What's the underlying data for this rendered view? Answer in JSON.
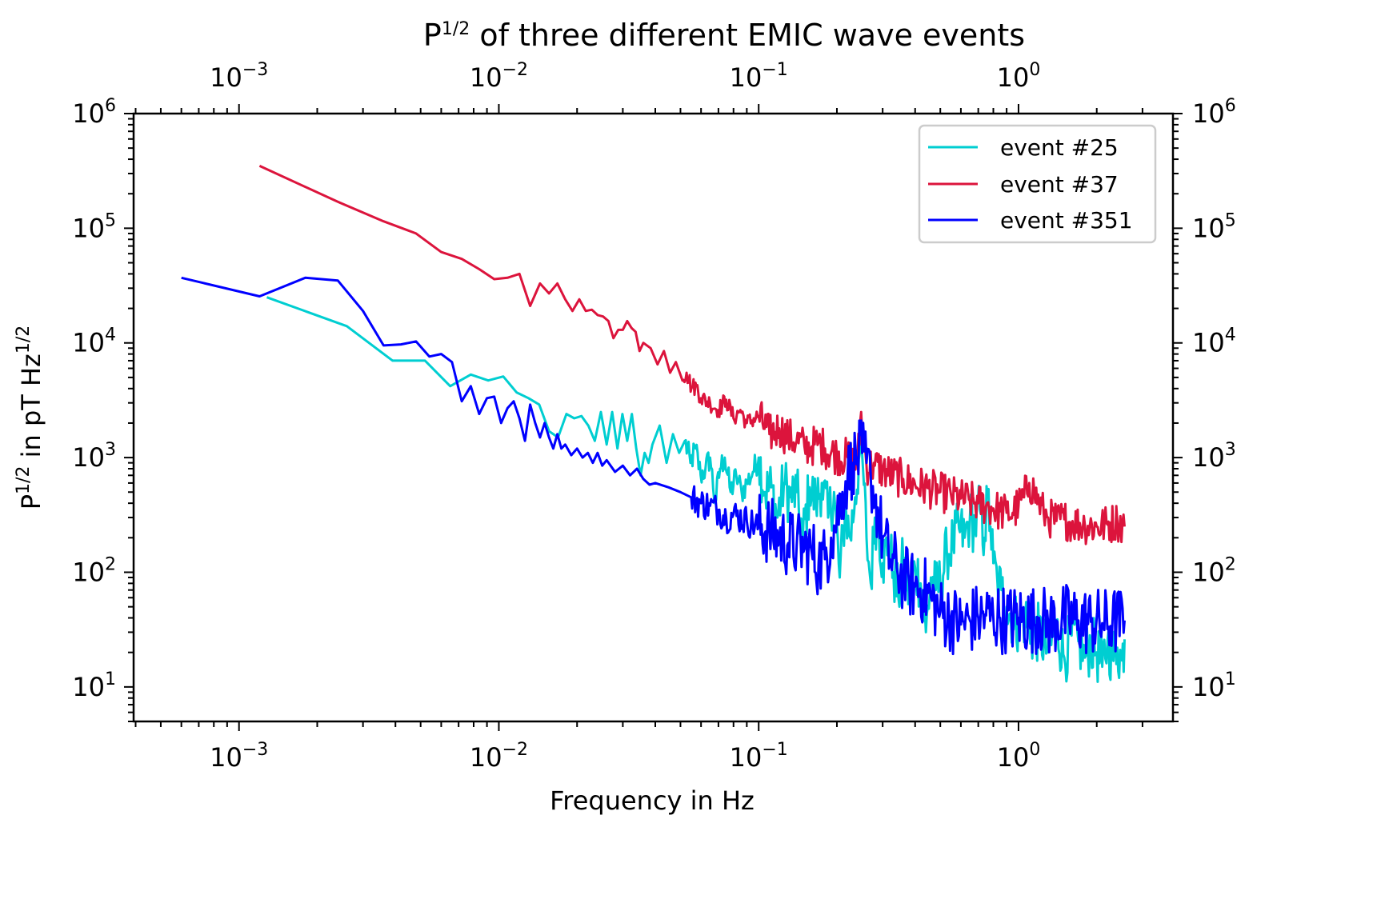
{
  "chart_data": {
    "type": "line",
    "title": "P^{1/2} of three different EMIC wave events",
    "title_parts": {
      "base": "P",
      "sup": "1/2",
      "rest": " of three different EMIC wave events"
    },
    "xlabel": "Frequency in Hz",
    "ylabel_parts": {
      "p1": "P",
      "s1": "1/2",
      "p2": " in pT Hz",
      "s2": "1/2"
    },
    "xscale": "log",
    "yscale": "log",
    "xlim": [
      0.000393,
      3.93
    ],
    "ylim": [
      5.0,
      1000000
    ],
    "grid": false,
    "legend_position": "top-right",
    "x_ticks": [
      {
        "value": 0.001,
        "base": "10",
        "exp": "−3"
      },
      {
        "value": 0.01,
        "base": "10",
        "exp": "−2"
      },
      {
        "value": 0.1,
        "base": "10",
        "exp": "−1"
      },
      {
        "value": 1,
        "base": "10",
        "exp": "0"
      }
    ],
    "y_ticks": [
      {
        "value": 10,
        "base": "10",
        "exp": "1"
      },
      {
        "value": 100,
        "base": "10",
        "exp": "2"
      },
      {
        "value": 1000,
        "base": "10",
        "exp": "3"
      },
      {
        "value": 10000,
        "base": "10",
        "exp": "4"
      },
      {
        "value": 100000,
        "base": "10",
        "exp": "5"
      },
      {
        "value": 1000000,
        "base": "10",
        "exp": "6"
      }
    ],
    "series": [
      {
        "name": "event #25",
        "color": "#00CED1",
        "x": [
          0.00128,
          0.0026,
          0.0039,
          0.0052,
          0.0065,
          0.0078,
          0.0091,
          0.0104,
          0.0117,
          0.013,
          0.0143,
          0.0156,
          0.0169,
          0.0182,
          0.0195,
          0.0208,
          0.0221,
          0.0234,
          0.0247,
          0.026,
          0.0273,
          0.0286,
          0.0299,
          0.0312,
          0.0325,
          0.0338,
          0.0351,
          0.0364,
          0.0377,
          0.039,
          0.0416,
          0.0442,
          0.0468,
          0.0494,
          0.052,
          0.0546,
          0.0572,
          0.0598,
          0.0624,
          0.065,
          0.068,
          0.071,
          0.074,
          0.078,
          0.082,
          0.086,
          0.09,
          0.095,
          0.1,
          0.106,
          0.112,
          0.118,
          0.125,
          0.132,
          0.14,
          0.148,
          0.157,
          0.166,
          0.175,
          0.185,
          0.195,
          0.205,
          0.215,
          0.225,
          0.235,
          0.245,
          0.252,
          0.26,
          0.27,
          0.28,
          0.29,
          0.3,
          0.315,
          0.33,
          0.345,
          0.36,
          0.38,
          0.4,
          0.42,
          0.44,
          0.46,
          0.48,
          0.5,
          0.53,
          0.56,
          0.59,
          0.62,
          0.65,
          0.68,
          0.71,
          0.74,
          0.76,
          0.78,
          0.8,
          0.83,
          0.86,
          0.9,
          0.95,
          1.0,
          1.06,
          1.12,
          1.2,
          1.3,
          1.4,
          1.5,
          1.6,
          1.7,
          1.8,
          1.9,
          2.0,
          2.1,
          2.2,
          2.3,
          2.4,
          2.5,
          2.56
        ],
        "y": [
          25000,
          14000,
          7000,
          7000,
          4200,
          5300,
          4700,
          5100,
          3700,
          3300,
          2900,
          1700,
          1500,
          2400,
          2200,
          2300,
          1900,
          1400,
          2500,
          1300,
          2500,
          1200,
          2400,
          1400,
          2400,
          1200,
          700,
          1100,
          900,
          1300,
          1900,
          900,
          1600,
          1100,
          1400,
          900,
          1200,
          700,
          800,
          1000,
          400,
          800,
          1000,
          500,
          700,
          500,
          600,
          750,
          1000,
          500,
          550,
          300,
          600,
          450,
          500,
          200,
          550,
          400,
          600,
          300,
          500,
          90,
          350,
          200,
          450,
          1100,
          800,
          200,
          80,
          300,
          250,
          120,
          180,
          100,
          60,
          130,
          60,
          110,
          80,
          30,
          90,
          70,
          80,
          150,
          180,
          240,
          200,
          300,
          250,
          350,
          200,
          450,
          250,
          120,
          80,
          70,
          50,
          40,
          35,
          40,
          28,
          30,
          20,
          32,
          18,
          28,
          25,
          18,
          24,
          20,
          15,
          25,
          18,
          22,
          17,
          26
        ],
        "noise": 0.12
      },
      {
        "name": "event #37",
        "color": "#DC143C",
        "x": [
          0.0012,
          0.0024,
          0.0036,
          0.0048,
          0.006,
          0.0072,
          0.0084,
          0.0096,
          0.0108,
          0.012,
          0.0132,
          0.0144,
          0.0156,
          0.0168,
          0.018,
          0.0192,
          0.0204,
          0.0216,
          0.0228,
          0.024,
          0.0252,
          0.0264,
          0.0276,
          0.0288,
          0.03,
          0.0312,
          0.0324,
          0.0336,
          0.0348,
          0.036,
          0.0384,
          0.0408,
          0.0432,
          0.0456,
          0.048,
          0.0504,
          0.0528,
          0.0552,
          0.0576,
          0.06,
          0.065,
          0.07,
          0.075,
          0.08,
          0.085,
          0.09,
          0.1,
          0.11,
          0.12,
          0.13,
          0.14,
          0.15,
          0.16,
          0.17,
          0.18,
          0.2,
          0.22,
          0.24,
          0.248,
          0.26,
          0.28,
          0.3,
          0.33,
          0.36,
          0.4,
          0.45,
          0.5,
          0.55,
          0.6,
          0.65,
          0.7,
          0.75,
          0.8,
          0.85,
          0.9,
          0.95,
          1.0,
          1.05,
          1.1,
          1.15,
          1.2,
          1.25,
          1.3,
          1.4,
          1.5,
          1.6,
          1.8,
          2.0,
          2.2,
          2.4,
          2.56
        ],
        "y": [
          350000,
          170000,
          115000,
          90000,
          62000,
          54000,
          44000,
          36000,
          37000,
          40000,
          21000,
          33000,
          27000,
          33000,
          24000,
          19000,
          24000,
          19000,
          19500,
          17500,
          17000,
          15500,
          11000,
          13000,
          13000,
          15500,
          13500,
          12500,
          8500,
          10000,
          9000,
          6500,
          8500,
          5500,
          6800,
          5000,
          5500,
          4100,
          4200,
          3300,
          3000,
          2600,
          3200,
          2200,
          2600,
          2000,
          2300,
          1600,
          1800,
          1500,
          1400,
          1250,
          1250,
          1350,
          1200,
          1050,
          1000,
          900,
          2500,
          850,
          850,
          780,
          700,
          650,
          580,
          540,
          500,
          470,
          440,
          420,
          400,
          380,
          360,
          340,
          330,
          330,
          380,
          450,
          600,
          500,
          400,
          330,
          300,
          280,
          290,
          270,
          260,
          250,
          260,
          280,
          250
        ],
        "noise": 0.08
      },
      {
        "name": "event #351",
        "color": "#0000FF",
        "x": [
          0.0006,
          0.0012,
          0.0018,
          0.0024,
          0.003,
          0.0036,
          0.0042,
          0.0048,
          0.0054,
          0.006,
          0.0066,
          0.0072,
          0.0078,
          0.0084,
          0.009,
          0.0096,
          0.0102,
          0.0108,
          0.0114,
          0.012,
          0.0126,
          0.0132,
          0.0138,
          0.0144,
          0.015,
          0.0156,
          0.0162,
          0.0168,
          0.0174,
          0.018,
          0.019,
          0.02,
          0.021,
          0.022,
          0.023,
          0.024,
          0.025,
          0.026,
          0.028,
          0.03,
          0.032,
          0.034,
          0.036,
          0.038,
          0.04,
          0.045,
          0.05,
          0.055,
          0.06,
          0.065,
          0.07,
          0.075,
          0.08,
          0.09,
          0.1,
          0.11,
          0.12,
          0.13,
          0.14,
          0.15,
          0.16,
          0.17,
          0.18,
          0.19,
          0.2,
          0.21,
          0.22,
          0.23,
          0.24,
          0.25,
          0.26,
          0.27,
          0.28,
          0.29,
          0.3,
          0.32,
          0.34,
          0.36,
          0.38,
          0.4,
          0.43,
          0.46,
          0.5,
          0.55,
          0.6,
          0.65,
          0.7,
          0.75,
          0.8,
          0.85,
          0.9,
          1.0,
          1.1,
          1.2,
          1.3,
          1.4,
          1.5,
          1.7,
          1.9,
          2.1,
          2.3,
          2.56
        ],
        "y": [
          37000,
          25500,
          37000,
          35000,
          19000,
          9500,
          9700,
          10300,
          7600,
          8000,
          6800,
          3100,
          4200,
          2400,
          3300,
          3400,
          2000,
          2700,
          3100,
          2200,
          1400,
          2900,
          2000,
          1500,
          2000,
          1500,
          1200,
          1600,
          1200,
          1300,
          1050,
          1200,
          1000,
          1100,
          900,
          1100,
          850,
          950,
          750,
          850,
          700,
          800,
          650,
          580,
          600,
          550,
          500,
          450,
          400,
          380,
          350,
          300,
          320,
          280,
          250,
          230,
          200,
          180,
          170,
          160,
          150,
          120,
          130,
          200,
          300,
          500,
          700,
          900,
          1000,
          1100,
          900,
          700,
          450,
          300,
          200,
          130,
          110,
          90,
          80,
          75,
          70,
          60,
          45,
          40,
          35,
          38,
          40,
          42,
          40,
          40,
          38,
          40,
          38,
          40,
          36,
          38,
          40,
          38,
          37,
          36,
          37,
          38
        ],
        "noise": 0.14
      }
    ]
  }
}
